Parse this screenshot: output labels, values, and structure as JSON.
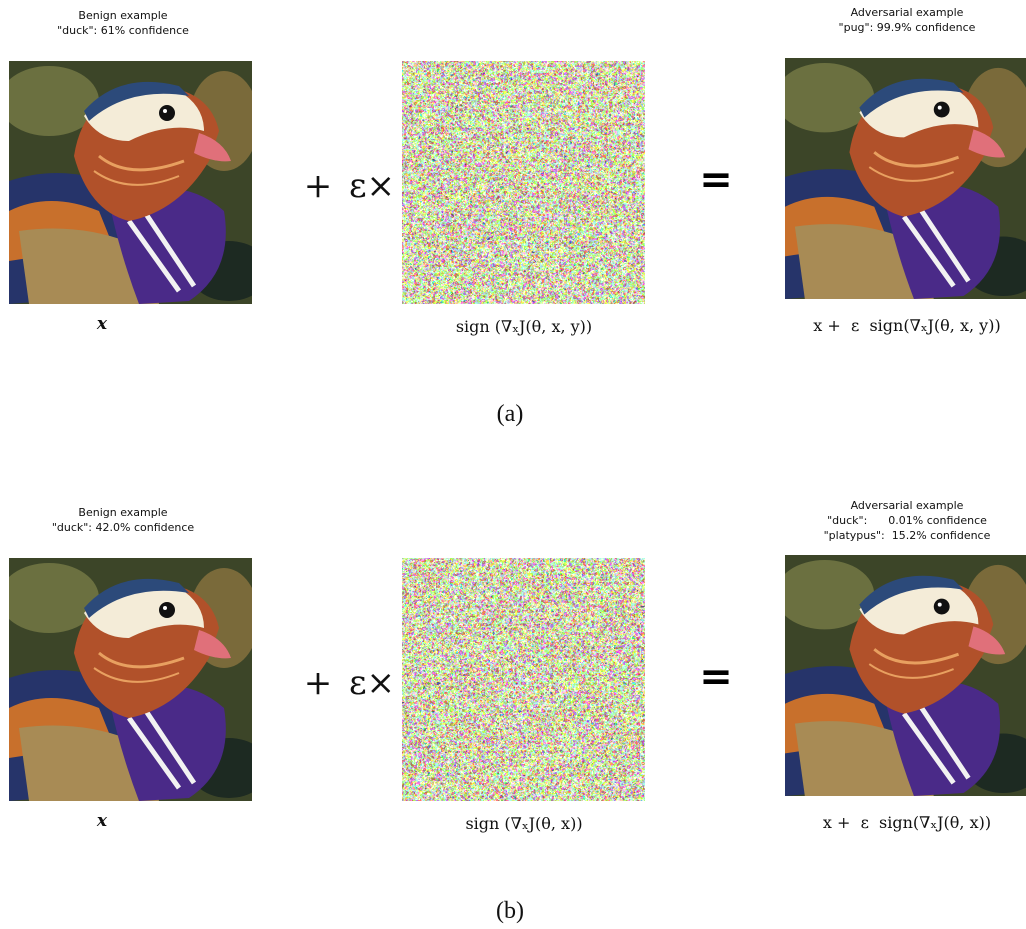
{
  "panels": [
    {
      "label": "(a)",
      "benign": {
        "lines": [
          "Benign example",
          "\"duck\": 61% confidence"
        ],
        "caption": "x"
      },
      "operators": {
        "plus": "+",
        "times": "ε×",
        "equals": "="
      },
      "noise_caption": "sign (∇ₓJ(θ, x, y))",
      "adversarial": {
        "lines": [
          "Adversarial example",
          "\"pug\": 99.9% confidence"
        ],
        "caption": "x +  ε  sign(∇ₓJ(θ, x, y))"
      }
    },
    {
      "label": "(b)",
      "benign": {
        "lines": [
          "Benign example",
          "\"duck\": 42.0% confidence"
        ],
        "caption": "x"
      },
      "operators": {
        "plus": "+",
        "times": "ε×",
        "equals": "="
      },
      "noise_caption": "sign (∇ₓJ(θ, x))",
      "adversarial": {
        "lines": [
          "Adversarial example",
          "\"duck\":      0.01% confidence",
          "\"platypus\":  15.2% confidence"
        ],
        "caption": "x +  ε  sign(∇ₓJ(θ, x))"
      }
    }
  ]
}
